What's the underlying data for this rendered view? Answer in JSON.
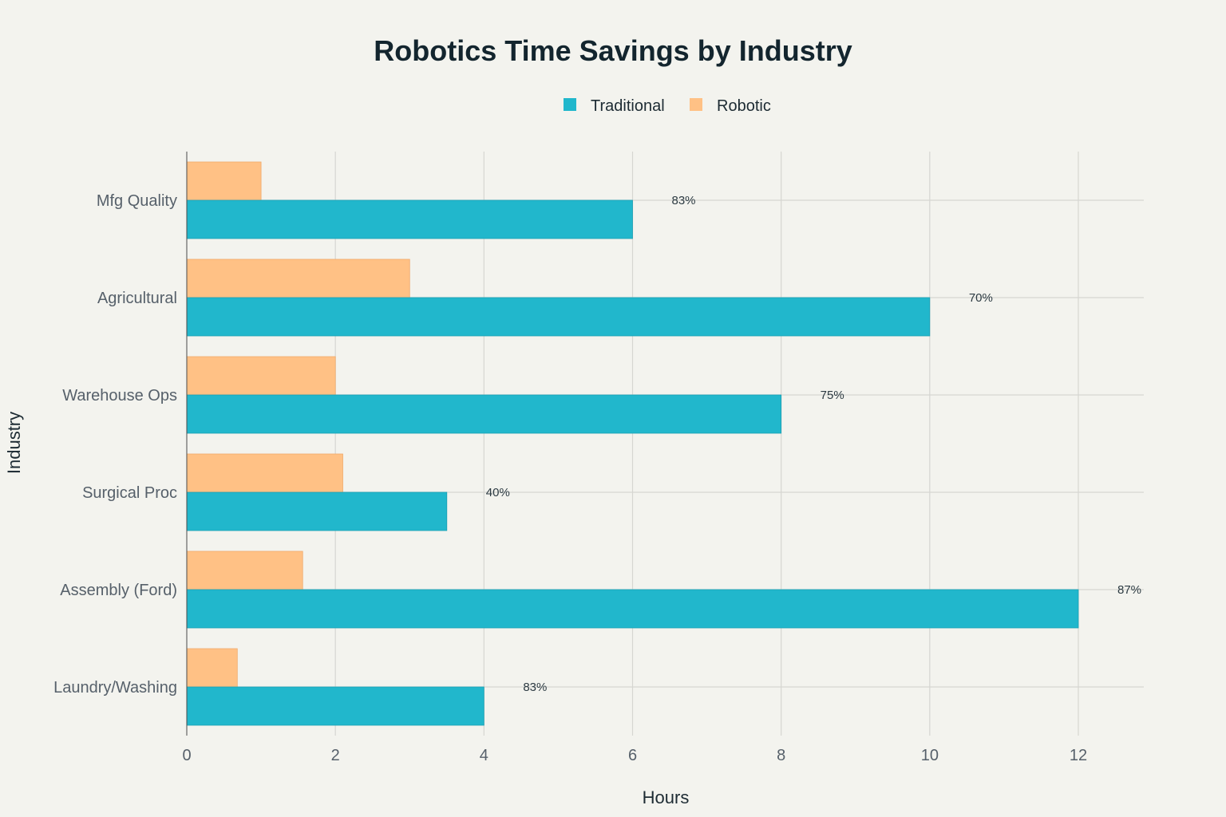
{
  "chart_data": {
    "type": "bar",
    "orientation": "horizontal",
    "title": "Robotics Time Savings by Industry",
    "xlabel": "Hours",
    "ylabel": "Industry",
    "xlim": [
      0,
      12.9
    ],
    "xticks": [
      0,
      2,
      4,
      6,
      8,
      10,
      12
    ],
    "grid": true,
    "legend_position": "top-center",
    "categories": [
      "Mfg Quality",
      "Agricultural",
      "Warehouse Ops",
      "Surgical Proc",
      "Assembly (Ford)",
      "Laundry/Washing"
    ],
    "series": [
      {
        "name": "Traditional",
        "color": "#21b7cc",
        "values": [
          6,
          10,
          8,
          3.5,
          12,
          4
        ]
      },
      {
        "name": "Robotic",
        "color": "#ffc185",
        "values": [
          1,
          3,
          2,
          2.1,
          1.56,
          0.68
        ]
      }
    ],
    "annotations": [
      "83%",
      "70%",
      "75%",
      "40%",
      "87%",
      "83%"
    ]
  }
}
